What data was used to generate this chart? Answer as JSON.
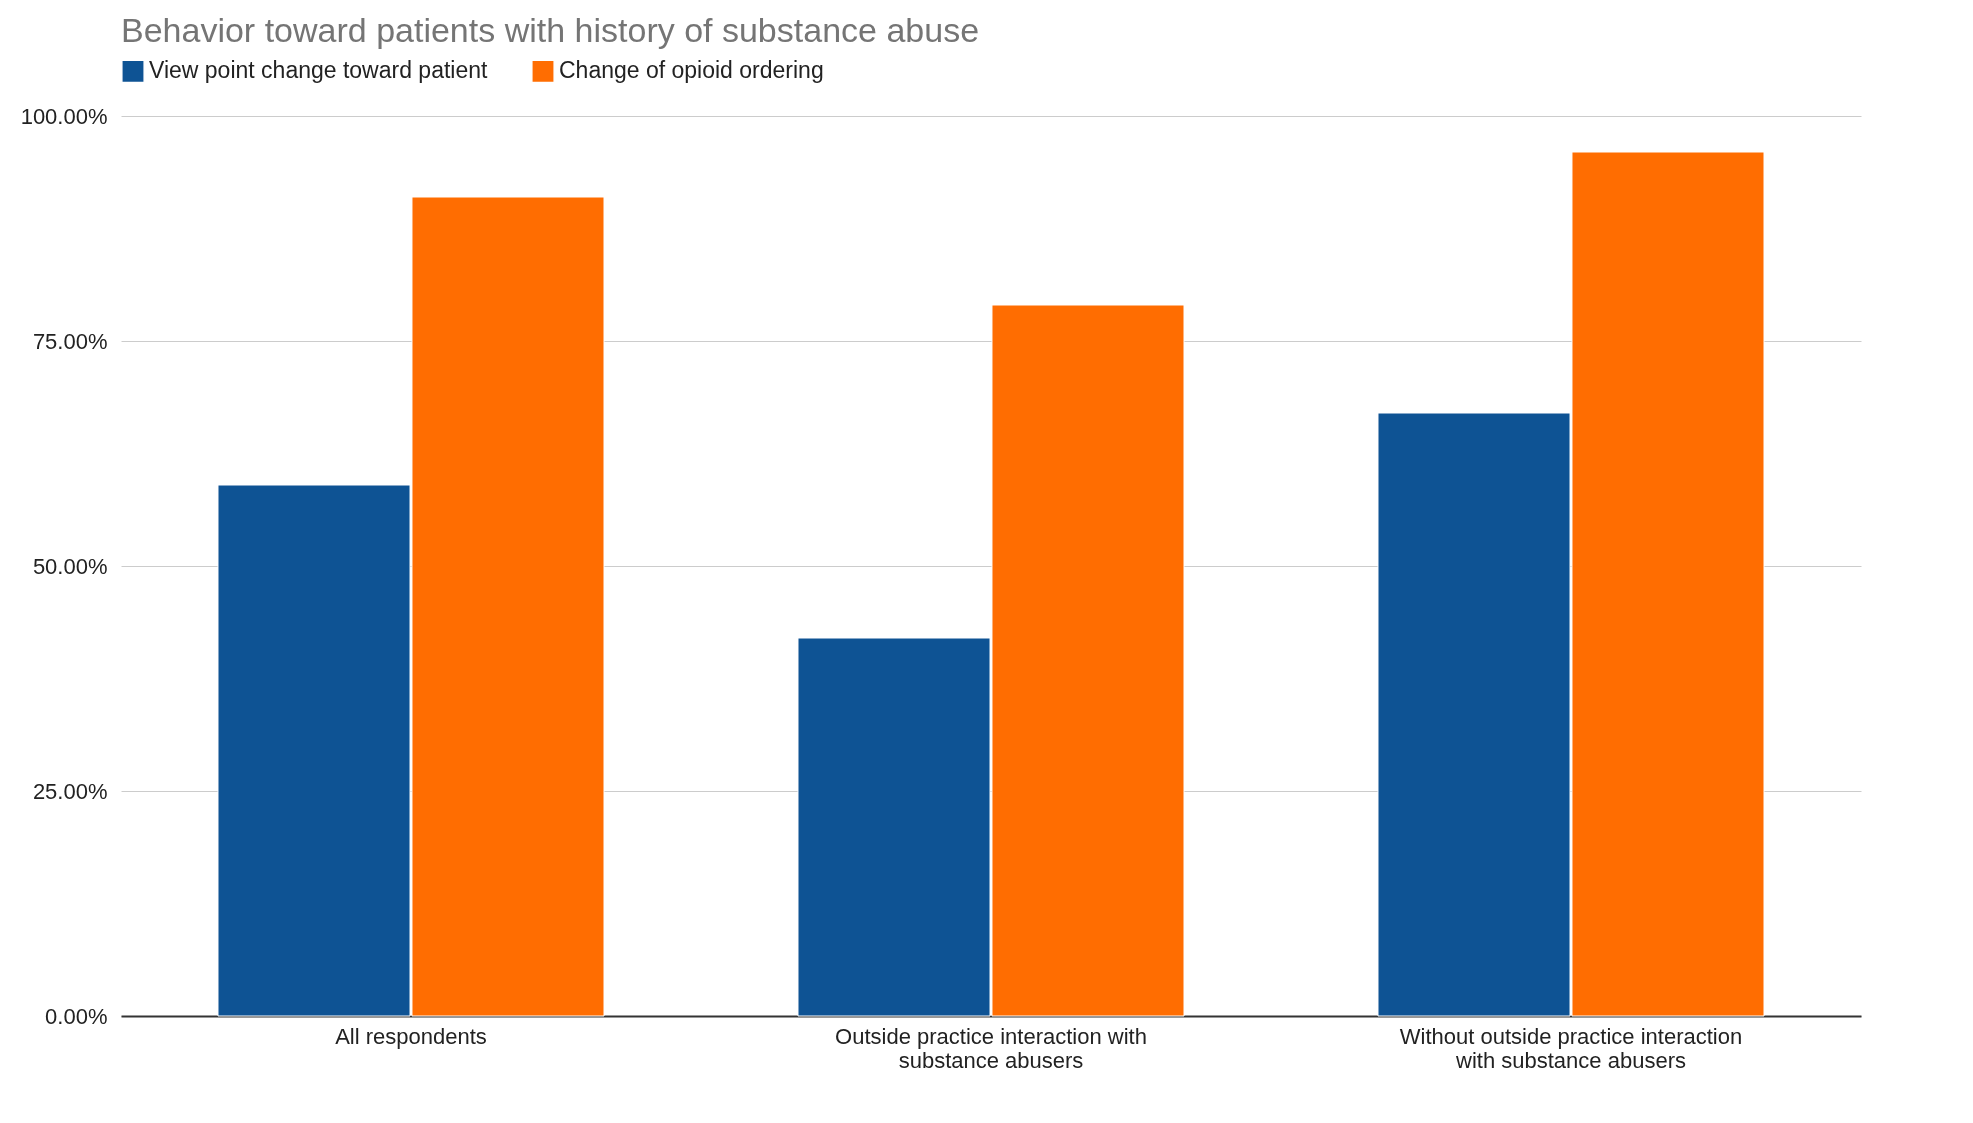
{
  "chart_data": {
    "type": "bar",
    "title": "Behavior toward patients with history of substance abuse",
    "categories": [
      "All respondents",
      "Outside practice interaction with substance abusers",
      "Without outside practice interaction with substance abusers"
    ],
    "series": [
      {
        "name": "View point change toward patient",
        "color": "#0e5394",
        "values": [
          59,
          42,
          67
        ]
      },
      {
        "name": "Change of opioid ordering",
        "color": "#ff6d01",
        "values": [
          91,
          79,
          96
        ]
      }
    ],
    "ylim": [
      0,
      100
    ],
    "yticks": [
      {
        "value": 0,
        "label": "0.00%"
      },
      {
        "value": 25,
        "label": "25.00%"
      },
      {
        "value": 50,
        "label": "50.00%"
      },
      {
        "value": 75,
        "label": "75.00%"
      },
      {
        "value": 100,
        "label": "100.00%"
      }
    ],
    "grid": "y",
    "legend": "top"
  }
}
